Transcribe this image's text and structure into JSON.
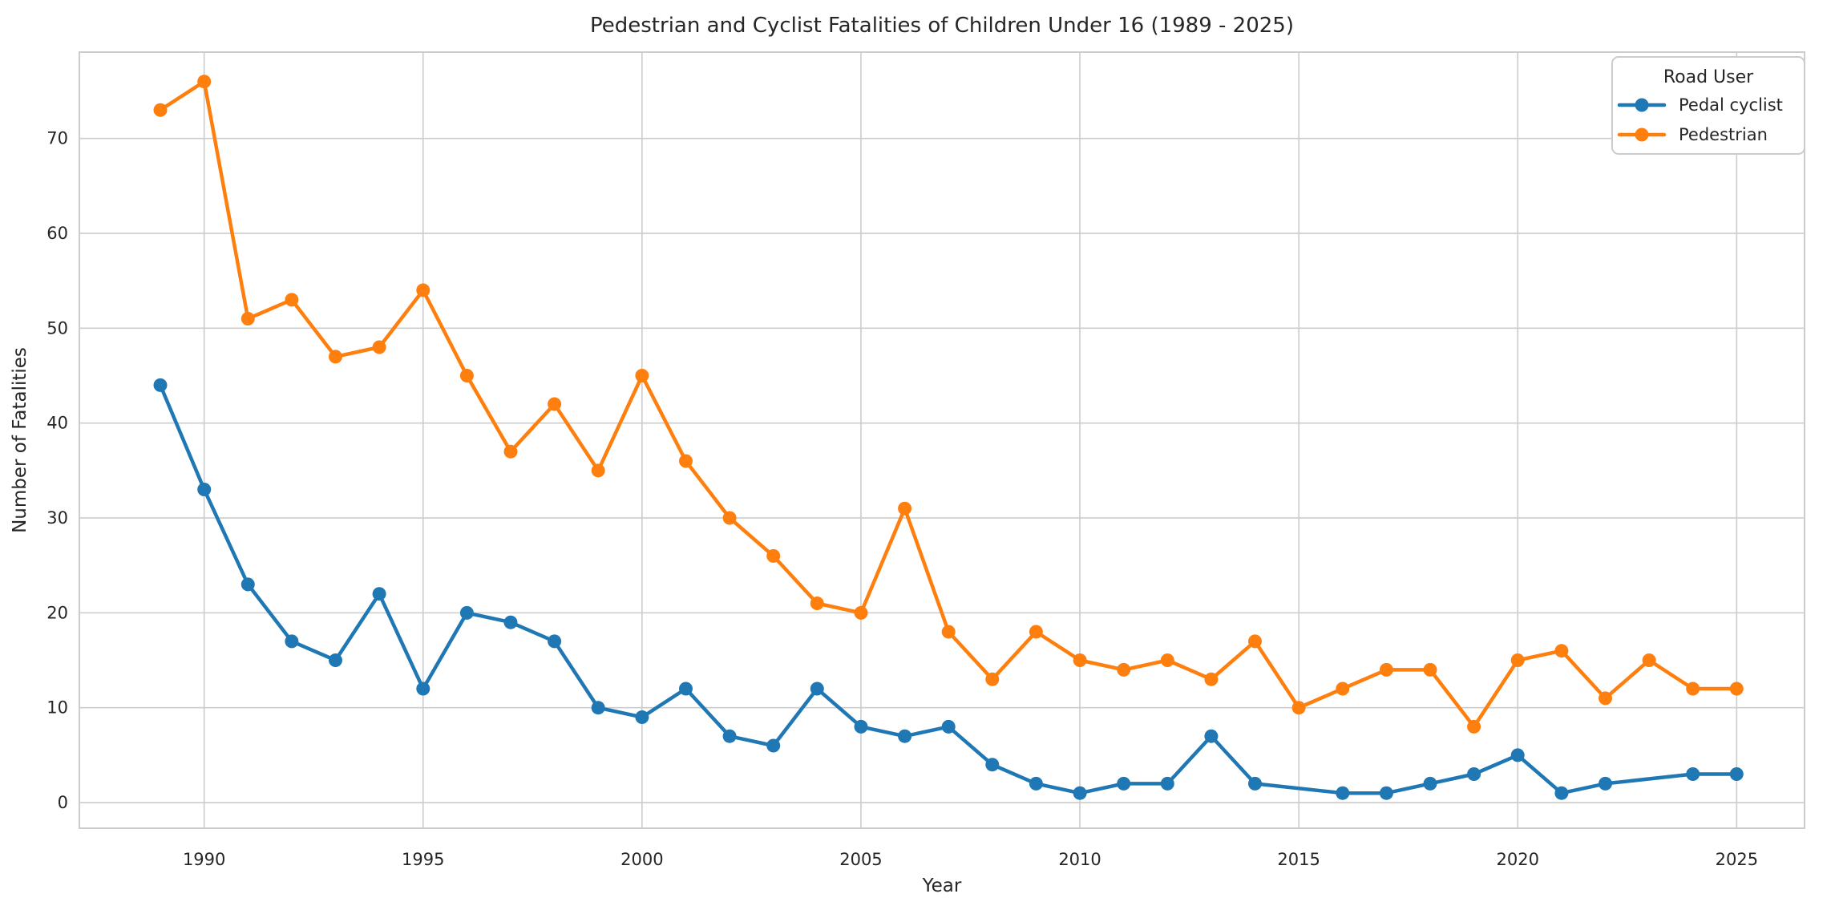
{
  "chart_data": {
    "type": "line",
    "title": "Pedestrian and Cyclist Fatalities of Children Under 16 (1989 - 2025)",
    "xlabel": "Year",
    "ylabel": "Number of Fatalities",
    "x": [
      1989,
      1990,
      1991,
      1992,
      1993,
      1994,
      1995,
      1996,
      1997,
      1998,
      1999,
      2000,
      2001,
      2002,
      2003,
      2004,
      2005,
      2006,
      2007,
      2008,
      2009,
      2010,
      2011,
      2012,
      2013,
      2014,
      2015,
      2016,
      2017,
      2018,
      2019,
      2020,
      2021,
      2022,
      2023,
      2024,
      2025
    ],
    "series": [
      {
        "name": "Pedal cyclist",
        "color": "#1f77b4",
        "values": [
          44,
          33,
          23,
          17,
          15,
          22,
          12,
          20,
          19,
          17,
          10,
          9,
          12,
          7,
          6,
          12,
          8,
          7,
          8,
          4,
          2,
          1,
          2,
          2,
          7,
          2,
          null,
          1,
          1,
          2,
          3,
          5,
          1,
          2,
          null,
          3,
          3
        ]
      },
      {
        "name": "Pedestrian",
        "color": "#ff7f0e",
        "values": [
          73,
          76,
          51,
          53,
          47,
          48,
          54,
          45,
          37,
          42,
          35,
          45,
          36,
          30,
          26,
          21,
          20,
          31,
          18,
          13,
          18,
          15,
          14,
          15,
          13,
          17,
          10,
          12,
          14,
          14,
          8,
          15,
          16,
          11,
          15,
          12,
          12
        ]
      }
    ],
    "xticks": [
      1990,
      1995,
      2000,
      2005,
      2010,
      2015,
      2020,
      2025
    ],
    "yticks": [
      0,
      10,
      20,
      30,
      40,
      50,
      60,
      70
    ],
    "xlim": [
      1987.15,
      2026.55
    ],
    "ylim": [
      -2.7,
      79.1
    ],
    "grid": true,
    "legend": {
      "title": "Road User",
      "position": "upper right"
    },
    "style": {
      "grid_color": "#cccccc",
      "spine_color": "#cccccc",
      "text_color": "#262626",
      "background": "#ffffff",
      "line_width": 4.5,
      "marker_radius": 8.5
    },
    "note": "null = no data point plotted for that year; line connects adjacent plotted years"
  }
}
